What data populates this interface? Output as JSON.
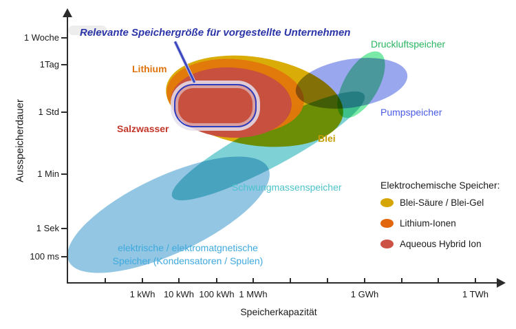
{
  "figure": {
    "annotation": "Relevante Speichergröße für vorgestellte Unternehmen"
  },
  "axes": {
    "x_label": "Speicherkapazität",
    "y_label": "Ausspeicherdauer",
    "x_tick_labels": [
      "1 kWh",
      "10 kWh",
      "100 kWh",
      "1 MWh",
      "1 GWh",
      "1 TWh"
    ],
    "y_tick_labels": [
      "1 Woche",
      "1Tag",
      "1 Std",
      "1 Min",
      "1 Sek",
      "100 ms"
    ]
  },
  "regions": {
    "elektrisch": {
      "label_line1": "elektrische / elektromatgnetische",
      "label_line2": "Speicher (Kondensatoren / Spulen)",
      "label_color": "#3FA9DE",
      "fill": "#92C6E3"
    },
    "schwung": {
      "label": "Schwungmassenspeicher",
      "label_color": "#4CC2CB",
      "fill": "#7ED2D6"
    },
    "blei": {
      "label": "Blei",
      "label_color": "#C49D00",
      "fill": "#DAAC08"
    },
    "lithium": {
      "label": "Lithium",
      "label_color": "#E0720C",
      "fill": "#E1770B"
    },
    "salzwasser": {
      "label": "Salzwasser",
      "label_color": "#C3372B",
      "fill": "#C6503F"
    },
    "pump": {
      "label": "Pumpspeicher",
      "label_color": "#4A5BE6",
      "fill": "#99A7EE"
    },
    "druckluft": {
      "label": "Druckluftspeicher",
      "label_color": "#28B560",
      "fill": "#7BE9A7"
    }
  },
  "highlight": {
    "stroke": "#2E3DC0",
    "annotation_color": "#2C35A8"
  },
  "legend": {
    "title": "Elektrochemische Speicher:",
    "items": [
      {
        "label": "Blei-Säure / Blei-Gel",
        "color": "#D5A603"
      },
      {
        "label": "Lithium-Ionen",
        "color": "#E2660C"
      },
      {
        "label": "Aqueous Hybrid Ion",
        "color": "#CC5246"
      }
    ]
  },
  "chart_data": {
    "type": "area",
    "title": "",
    "xlabel": "Speicherkapazität",
    "ylabel": "Ausspeicherdauer",
    "x_scale": "log",
    "y_scale": "log",
    "x_ticks": [
      "1 kWh",
      "10 kWh",
      "100 kWh",
      "1 MWh",
      "1 GWh",
      "1 TWh"
    ],
    "y_ticks": [
      "1 Woche",
      "1Tag",
      "1 Std",
      "1 Min",
      "1 Sek",
      "100 ms"
    ],
    "legend_title": "Elektrochemische Speicher:",
    "legend_entries": [
      "Blei-Säure / Blei-Gel",
      "Lithium-Ionen",
      "Aqueous Hybrid Ion"
    ],
    "regions": [
      {
        "name": "elektrische / elektromatgnetische Speicher (Kondensatoren / Spulen)",
        "color": "#92C6E3",
        "capacity": "≈5 Wh bis ≈5 MWh",
        "duration": "<100 ms bis ≈1 Min"
      },
      {
        "name": "Schwungmassenspeicher",
        "color": "#7ED2D6",
        "capacity": "≈1 kWh bis ≈1 GWh",
        "duration": "≈10 Sek bis einige Std"
      },
      {
        "name": "Blei (Blei-Säure / Blei-Gel)",
        "color": "#D5A603",
        "capacity": "≈4 kWh bis ≈300 MWh",
        "duration": "≈15 Min bis >1 Tag"
      },
      {
        "name": "Lithium (Lithium-Ionen)",
        "color": "#E2660C",
        "capacity": "≈5 kWh bis ≈20 MWh",
        "duration": "≈20 Min bis >1 Tag"
      },
      {
        "name": "Salzwasser (Aqueous Hybrid Ion)",
        "color": "#CC5246",
        "capacity": "≈6 kWh bis ≈10 MWh",
        "duration": "≈20 Min bis ≈1 Tag"
      },
      {
        "name": "Pumpspeicher",
        "color": "#99A7EE",
        "capacity": "≈15 MWh bis ≈15 GWh",
        "duration": "≈1 Std bis >1 Tag"
      },
      {
        "name": "Druckluftspeicher",
        "color": "#7BE9A7",
        "capacity": "≈200 MWh bis ≈4 GWh",
        "duration": "≈1 Std bis ≈2 Tage"
      }
    ],
    "annotation": {
      "text": "Relevante Speichergröße für vorgestellte Unternehmen",
      "marked_area": {
        "capacity": "≈7 kWh bis ≈1 MWh",
        "duration": "≈40 Min bis ≈7 Std"
      }
    }
  }
}
